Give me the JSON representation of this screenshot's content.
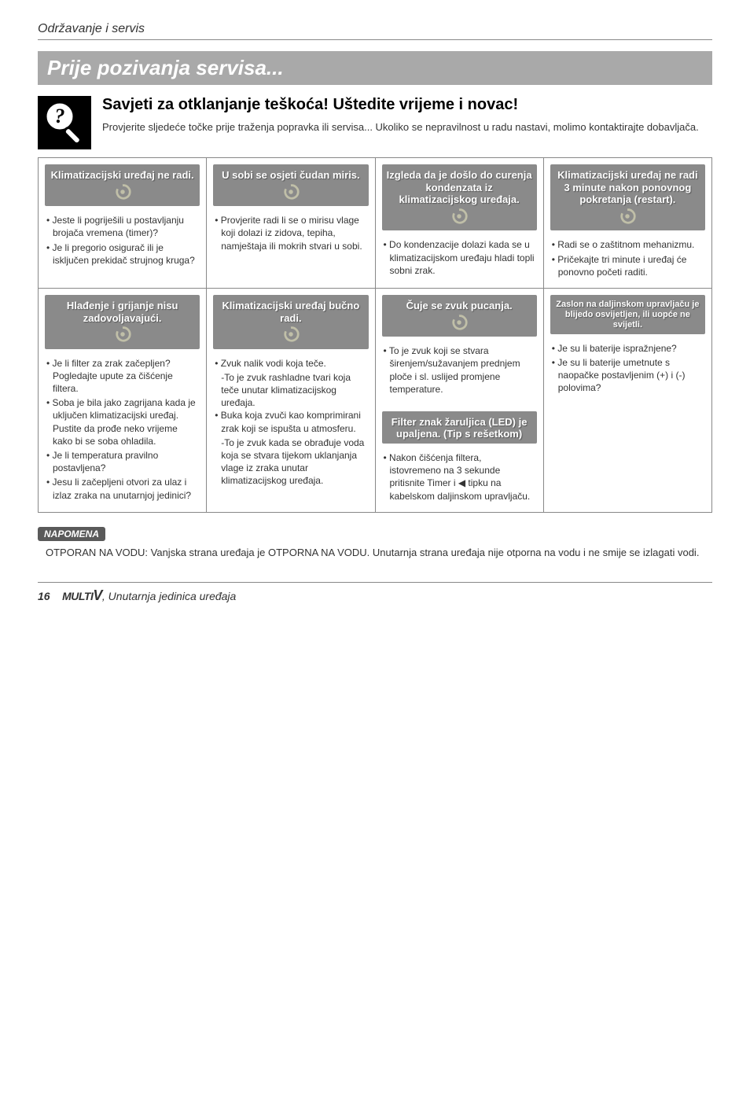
{
  "breadcrumb": "Održavanje i servis",
  "section_title": "Prije pozivanja servisa...",
  "subtitle": "Savjeti za otklanjanje teškoća! Uštedite vrijeme i novac!",
  "intro": "Provjerite sljedeće točke prije traženja popravka ili servisa... Ukoliko se nepravilnost u radu nastavi, molimo kontaktirajte dobavljača.",
  "colors": {
    "grey_box_bg": "#8a8a8a",
    "section_bar_bg": "#a9a9a9",
    "border": "#888888",
    "text": "#333333",
    "white": "#ffffff",
    "badge_bg": "#5a5a5a"
  },
  "row1": {
    "c1": {
      "header": "Klimatizacijski uređaj ne radi.",
      "body": [
        "Jeste li pogriješili u postavljanju brojača vremena (timer)?",
        "Je li pregorio osigurač ili je isključen prekidač strujnog kruga?"
      ]
    },
    "c2": {
      "header": "U sobi se osjeti čudan miris.",
      "body": [
        "Provjerite radi li se o mirisu vlage koji dolazi iz zidova, tepiha, namještaja ili mokrih stvari u sobi."
      ]
    },
    "c3": {
      "header": "Izgleda da je došlo do curenja kondenzata iz klimatizacijskog uređaja.",
      "body": [
        "Do kondenzacije dolazi kada se u klimatizacijskom uređaju hladi topli sobni zrak."
      ]
    },
    "c4": {
      "header": "Klimatizacijski uređaj ne radi 3 minute nakon ponovnog pokretanja (restart).",
      "body": [
        "Radi se o zaštitnom mehanizmu.",
        "Pričekajte tri minute i uređaj će ponovno početi raditi."
      ]
    }
  },
  "row2": {
    "c1": {
      "header": "Hlađenje i grijanje nisu zadovoljavajući.",
      "body": [
        "Je li filter za zrak začepljen? Pogledajte upute za čišćenje filtera.",
        "Soba je bila jako zagrijana kada je uključen klimatizacijski uređaj. Pustite da prođe neko vrijeme kako bi se soba ohladila.",
        "Je li temperatura pravilno postavljena?",
        "Jesu li začepljeni otvori za ulaz i izlaz zraka na unutarnjoj jedinici?"
      ]
    },
    "c2": {
      "header": "Klimatizacijski uređaj bučno radi.",
      "body_parts": [
        {
          "lead": "Zvuk nalik vodi koja teče.",
          "rest": "-To je zvuk rashladne tvari koja teče unutar klimatizacijskog uređaja."
        },
        {
          "lead": "Buka koja zvuči kao komprimirani zrak koji se ispušta u atmosferu.",
          "rest": "-To je zvuk kada se obrađuje voda koja se stvara tijekom uklanjanja vlage iz zraka unutar klimatizacijskog uređaja."
        }
      ]
    },
    "c3": {
      "header": "Čuje se zvuk pucanja.",
      "body": [
        "To je zvuk koji se stvara širenjem/sužavanjem prednjem ploče i sl. uslijed promjene temperature."
      ],
      "header2": "Filter znak žaruljica (LED) je upaljena. (Tip s rešetkom)",
      "body2": [
        "Nakon čišćenja filtera, istovremeno na 3 sekunde pritisnite Timer i ◀ tipku na kabelskom daljinskom upravljaču."
      ]
    },
    "c4": {
      "header": "Zaslon na daljinskom upravljaču je blijedo osvijetljen, ili uopće ne svijetli.",
      "body": [
        "Je su li baterije ispražnjene?",
        "Je su li baterije umetnute s naopačke postavljenim (+) i (-) polovima?"
      ]
    }
  },
  "napomena": {
    "label": "NAPOMENA",
    "text_lead": "OTPORAN NA VODU: ",
    "text_rest": "Vanjska strana uređaja je OTPORNA NA VODU. Unutarnja strana uređaja nije otporna na vodu i ne smije se izlagati vodi."
  },
  "footer": {
    "page_num": "16",
    "logo_word1": "MULTI",
    "logo_word2": "V",
    "tail": "Unutarnja jedinica uređaja"
  }
}
